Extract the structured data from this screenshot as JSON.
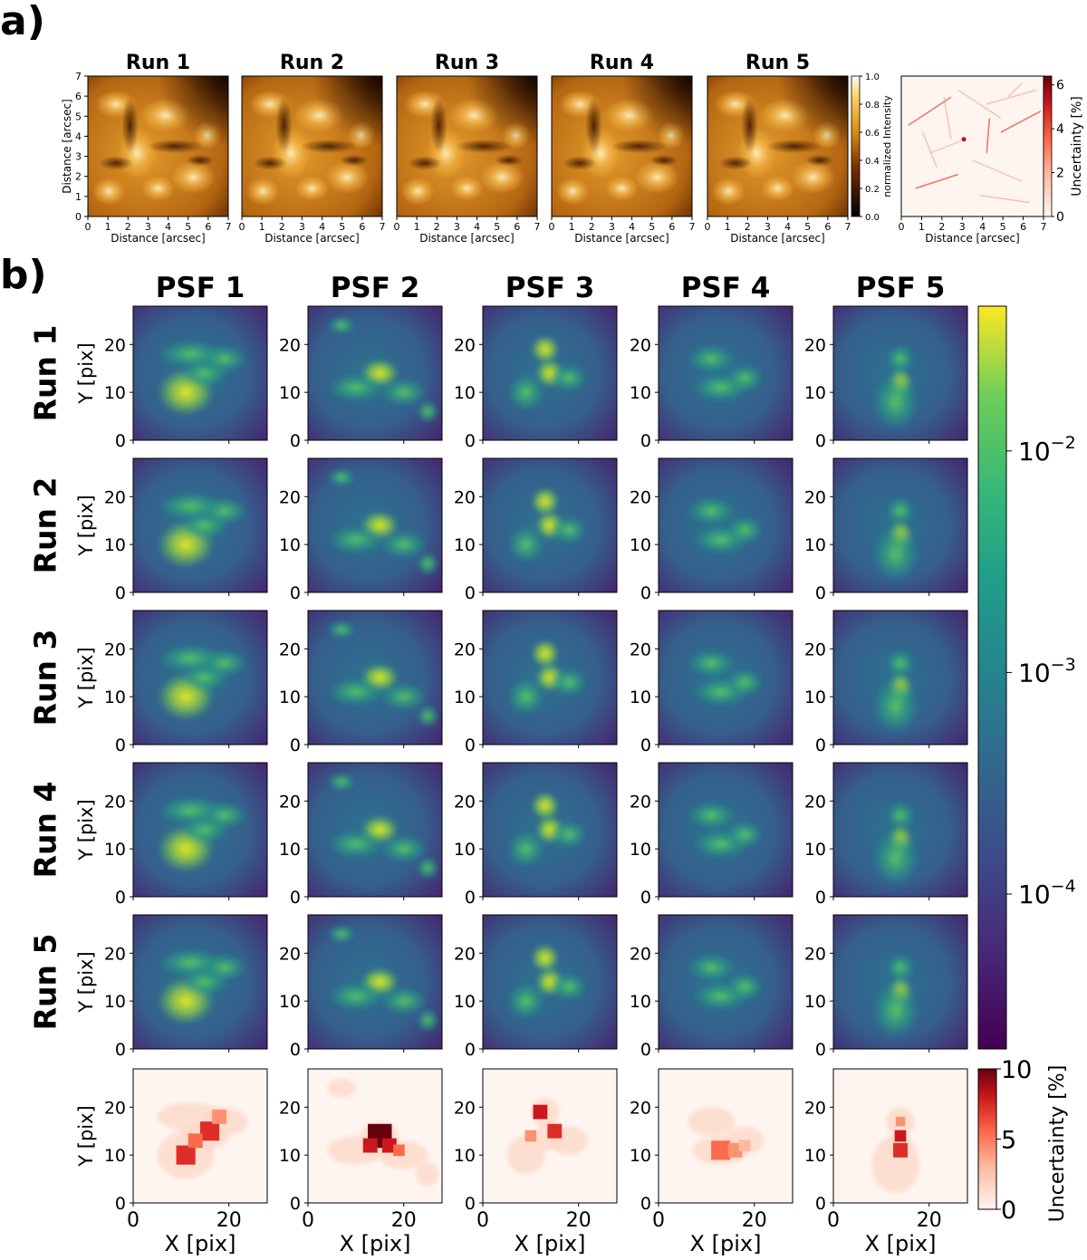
{
  "chart_data": [
    {
      "panel": "a)",
      "type": "heatmap",
      "images": [
        {
          "title": "Run 1",
          "xlabel": "Distance [arcsec]",
          "ylabel": "Distance [arcsec]"
        },
        {
          "title": "Run 2",
          "xlabel": "Distance [arcsec]",
          "ylabel": ""
        },
        {
          "title": "Run 3",
          "xlabel": "Distance [arcsec]",
          "ylabel": ""
        },
        {
          "title": "Run 4",
          "xlabel": "Distance [arcsec]",
          "ylabel": ""
        },
        {
          "title": "Run 5",
          "xlabel": "Distance [arcsec]",
          "ylabel": ""
        }
      ],
      "xlim": [
        0,
        7
      ],
      "ylim": [
        0,
        7
      ],
      "ticks": [
        "0",
        "1",
        "2",
        "3",
        "4",
        "5",
        "6",
        "7"
      ],
      "colorbar": {
        "label": "normalized Intensity",
        "ticks": [
          "0.0",
          "0.2",
          "0.4",
          "0.6",
          "0.8",
          "1.0"
        ],
        "range": [
          0,
          1
        ],
        "colormap": "afmhot"
      },
      "uncertainty_map": {
        "xlabel": "Distance [arcsec]",
        "ticks": [
          "0",
          "1",
          "2",
          "3",
          "4",
          "5",
          "6",
          "7"
        ],
        "colorbar": {
          "label": "Uncertainty [%]",
          "ticks": [
            "0",
            "2",
            "4",
            "6"
          ],
          "range": [
            0,
            6.4
          ],
          "colormap": "Reds"
        }
      }
    },
    {
      "panel": "b)",
      "type": "heatmap",
      "columns": [
        "PSF 1",
        "PSF 2",
        "PSF 3",
        "PSF 4",
        "PSF 5"
      ],
      "rows": [
        "Run 1",
        "Run 2",
        "Run 3",
        "Run 4",
        "Run 5"
      ],
      "ylabel": "Y [pix]",
      "xlabel": "X [pix]",
      "yticks": [
        "0",
        "10",
        "20"
      ],
      "xticks": [
        "0",
        "20"
      ],
      "pixel_range": [
        0,
        28
      ],
      "colorbar": {
        "scale": "log",
        "colormap": "viridis",
        "range": [
          2e-05,
          0.045
        ],
        "ticks": [
          "10^-4",
          "10^-3",
          "10^-2"
        ],
        "tick_values": [
          0.0001,
          0.001,
          0.01
        ]
      },
      "uncertainty_row": {
        "colorbar": {
          "label": "Uncertainty [%]",
          "ticks": [
            "0",
            "5",
            "10"
          ],
          "range": [
            0,
            10
          ],
          "colormap": "Reds"
        }
      }
    }
  ]
}
